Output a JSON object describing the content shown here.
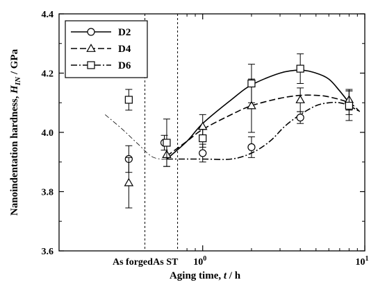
{
  "chart_data": {
    "type": "scatter",
    "xlabel": "Aging time,",
    "xlabel_var": "t",
    "xlabel_unit": " / h",
    "ylabel": "Nanoindentation hardness,",
    "ylabel_var": "H",
    "ylabel_sub": "IN",
    "ylabel_unit": " / GPa",
    "x_scale": "log",
    "xlim": [
      0.13,
      10
    ],
    "ylim": [
      3.6,
      4.4
    ],
    "y_ticks": [
      "3.6",
      "3.8",
      "4.0",
      "4.2",
      "4.4"
    ],
    "x_ticks": [
      {
        "base": "10",
        "exp": "0",
        "x": 1
      },
      {
        "base": "10",
        "exp": "1",
        "x": 10
      }
    ],
    "categorical_labels": [
      {
        "label": "As forged",
        "x": 0.37
      },
      {
        "label": "As ST",
        "x": 0.59
      }
    ],
    "dividers_x": [
      0.44,
      0.7
    ],
    "grid": false,
    "legend_position": "top-left",
    "series": [
      {
        "name": "D2",
        "marker": "circle",
        "line": "solid",
        "points": [
          {
            "x": 0.35,
            "y": 3.91,
            "err": 0.045
          },
          {
            "x": 0.58,
            "y": 3.965,
            "err": 0.025
          },
          {
            "x": 1,
            "y": 3.93,
            "err": 0.03
          },
          {
            "x": 2,
            "y": 3.95,
            "err": 0.035
          },
          {
            "x": 4,
            "y": 4.05,
            "err": 0.02
          },
          {
            "x": 8,
            "y": 4.1,
            "err": 0.04
          }
        ],
        "curve": [
          [
            0.6,
            3.91
          ],
          [
            0.8,
            3.97
          ],
          [
            1,
            4.03
          ],
          [
            1.5,
            4.11
          ],
          [
            2,
            4.16
          ],
          [
            3,
            4.2
          ],
          [
            4,
            4.21
          ],
          [
            5,
            4.2
          ],
          [
            6,
            4.18
          ],
          [
            7,
            4.14
          ],
          [
            8,
            4.1
          ]
        ]
      },
      {
        "name": "D4",
        "marker": "triangle",
        "line": "dash",
        "points": [
          {
            "x": 0.35,
            "y": 3.83,
            "err": 0.085
          },
          {
            "x": 0.6,
            "y": 3.925,
            "err": 0.04
          },
          {
            "x": 1,
            "y": 4.02,
            "err": 0.04
          },
          {
            "x": 2,
            "y": 4.09,
            "err": 0.09
          },
          {
            "x": 4,
            "y": 4.11,
            "err": 0.04
          },
          {
            "x": 8,
            "y": 4.11,
            "err": 0.035
          }
        ],
        "curve": [
          [
            0.6,
            3.92
          ],
          [
            0.8,
            3.97
          ],
          [
            1,
            4.01
          ],
          [
            1.5,
            4.06
          ],
          [
            2,
            4.09
          ],
          [
            3,
            4.115
          ],
          [
            4,
            4.125
          ],
          [
            5,
            4.125
          ],
          [
            6,
            4.12
          ],
          [
            8,
            4.1
          ],
          [
            9.3,
            4.07
          ]
        ]
      },
      {
        "name": "D6",
        "marker": "square",
        "line": "dashdot",
        "points": [
          {
            "x": 0.35,
            "y": 4.11,
            "err": 0.035
          },
          {
            "x": 0.6,
            "y": 3.965,
            "err": 0.08
          },
          {
            "x": 1,
            "y": 3.98,
            "err": 0.03
          },
          {
            "x": 2,
            "y": 4.165,
            "err": 0.065
          },
          {
            "x": 4,
            "y": 4.215,
            "err": 0.05
          },
          {
            "x": 8,
            "y": 4.09,
            "err": 0.05
          }
        ],
        "curve": [
          [
            0.6,
            3.91
          ],
          [
            1,
            3.91
          ],
          [
            1.5,
            3.91
          ],
          [
            2,
            3.93
          ],
          [
            2.6,
            3.97
          ],
          [
            3.2,
            4.02
          ],
          [
            4,
            4.06
          ],
          [
            5,
            4.09
          ],
          [
            6,
            4.1
          ],
          [
            7,
            4.1
          ],
          [
            8,
            4.09
          ],
          [
            9.3,
            4.07
          ]
        ]
      }
    ],
    "guide_curve": {
      "style": "thin-dashdot",
      "points": [
        [
          0.25,
          4.06
        ],
        [
          0.32,
          4.01
        ],
        [
          0.4,
          3.96
        ],
        [
          0.48,
          3.92
        ],
        [
          0.55,
          3.91
        ],
        [
          0.6,
          3.91
        ]
      ]
    }
  }
}
